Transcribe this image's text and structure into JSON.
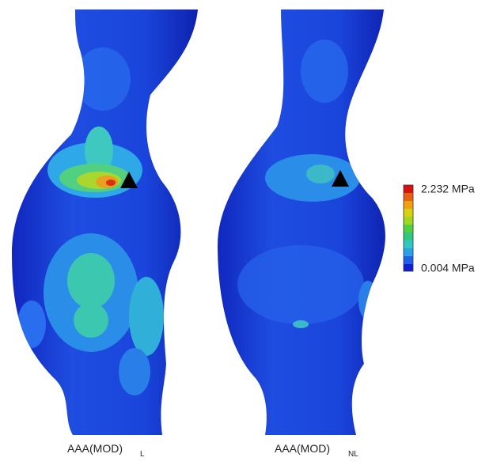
{
  "figure": {
    "panels": [
      {
        "label": "AAA(MOD)",
        "subscript": "L"
      },
      {
        "label": "AAA(MOD)",
        "subscript": "NL"
      }
    ],
    "colorbar": {
      "max_label": "2.232 MPa",
      "min_label": "0.004 MPa"
    }
  }
}
